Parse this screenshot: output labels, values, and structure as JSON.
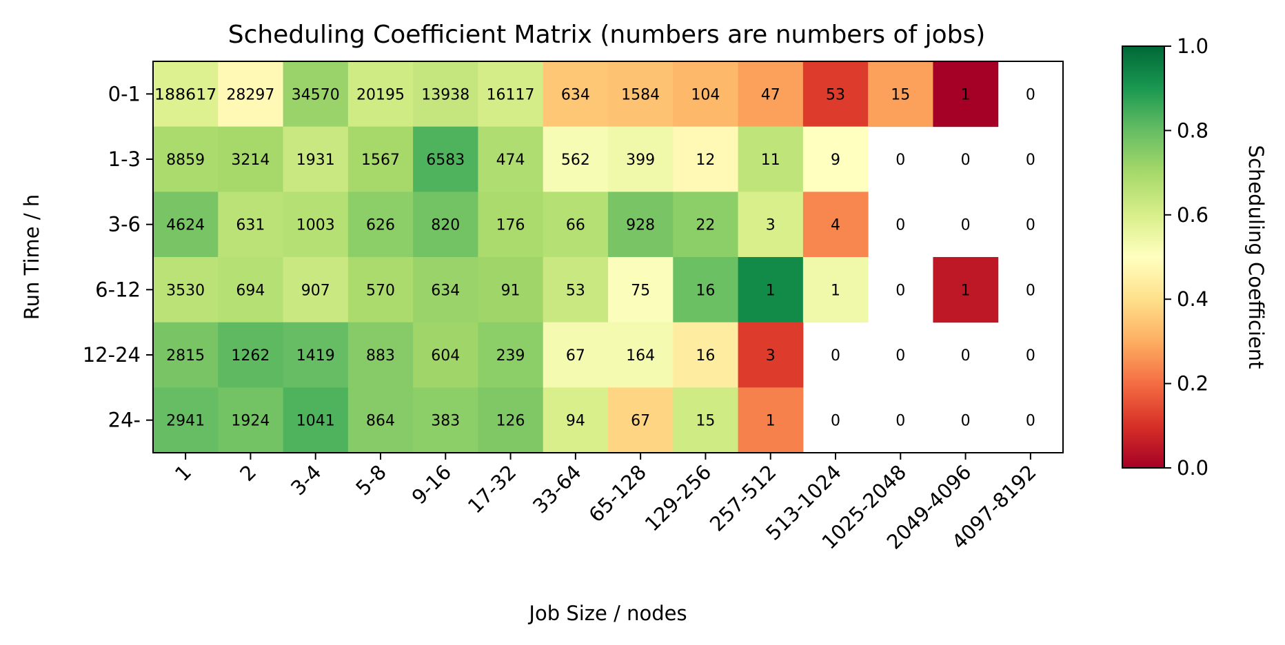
{
  "chart_data": {
    "type": "heatmap",
    "title": "Scheduling Coefficient Matrix (numbers are numbers of jobs)",
    "xlabel": "Job Size / nodes",
    "ylabel": "Run Time / h",
    "x_categories": [
      "1",
      "2",
      "3-4",
      "5-8",
      "9-16",
      "17-32",
      "33-64",
      "65-128",
      "129-256",
      "257-512",
      "513-1024",
      "1025-2048",
      "2049-4096",
      "4097-8192"
    ],
    "y_categories": [
      "0-1",
      "1-3",
      "3-6",
      "6-12",
      "12-24",
      "24-"
    ],
    "counts": [
      [
        188617,
        28297,
        34570,
        20195,
        13938,
        16117,
        634,
        1584,
        104,
        47,
        53,
        15,
        1,
        0
      ],
      [
        8859,
        3214,
        1931,
        1567,
        6583,
        474,
        562,
        399,
        12,
        11,
        9,
        0,
        0,
        0
      ],
      [
        4624,
        631,
        1003,
        626,
        820,
        176,
        66,
        928,
        22,
        3,
        4,
        0,
        0,
        0
      ],
      [
        3530,
        694,
        907,
        570,
        634,
        91,
        53,
        75,
        16,
        1,
        1,
        0,
        1,
        0
      ],
      [
        2815,
        1262,
        1419,
        883,
        604,
        239,
        67,
        164,
        16,
        3,
        0,
        0,
        0,
        0
      ],
      [
        2941,
        1924,
        1041,
        864,
        383,
        126,
        94,
        67,
        15,
        1,
        0,
        0,
        0,
        0
      ]
    ],
    "coefficients": [
      [
        0.59,
        0.48,
        0.72,
        0.62,
        0.64,
        0.61,
        0.35,
        0.34,
        0.32,
        0.28,
        0.12,
        0.28,
        0.0,
        null
      ],
      [
        0.69,
        0.7,
        0.63,
        0.7,
        0.83,
        0.68,
        0.52,
        0.54,
        0.48,
        0.65,
        0.5,
        null,
        null,
        null
      ],
      [
        0.77,
        0.66,
        0.67,
        0.74,
        0.78,
        0.69,
        0.67,
        0.77,
        0.74,
        0.6,
        0.24,
        null,
        null,
        null
      ],
      [
        0.66,
        0.67,
        0.63,
        0.69,
        0.72,
        0.71,
        0.63,
        0.51,
        0.79,
        0.93,
        0.54,
        null,
        0.05,
        null
      ],
      [
        0.77,
        0.81,
        0.8,
        0.75,
        0.71,
        0.74,
        0.53,
        0.53,
        0.44,
        0.12,
        null,
        null,
        null,
        null
      ],
      [
        0.8,
        0.78,
        0.83,
        0.75,
        0.74,
        0.76,
        0.6,
        0.38,
        0.62,
        0.23,
        null,
        null,
        null,
        null
      ]
    ],
    "colorbar": {
      "label": "Scheduling Coefficient",
      "range": [
        0.0,
        1.0
      ],
      "ticks": [
        "0.0",
        "0.2",
        "0.4",
        "0.6",
        "0.8",
        "1.0"
      ],
      "colormap": "RdYlGn"
    }
  }
}
